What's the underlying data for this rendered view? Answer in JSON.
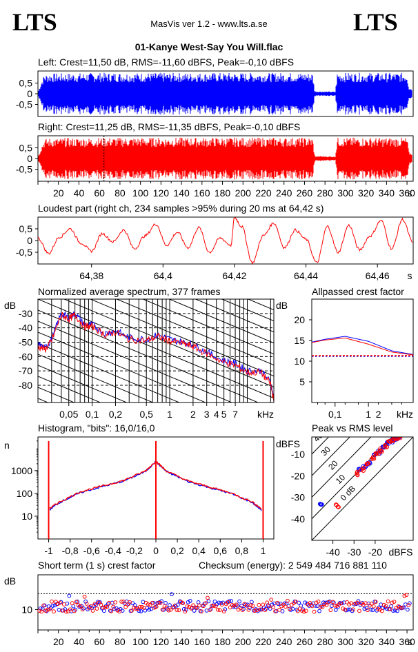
{
  "header": {
    "logo_left": "LTS",
    "logo_right": "LTS",
    "app": "MasVis ver 1.2 - www.lts.a.se",
    "file": "01-Kanye West-Say You Will.flac"
  },
  "colors": {
    "left": "#0000ff",
    "right": "#ff0000",
    "grid": "#000000",
    "dashed": "#000000"
  },
  "chart_data": [
    {
      "id": "left-waveform",
      "type": "area",
      "title": "Left: Crest=11,50 dB, RMS=-11,60 dBFS, Peak=-0,10 dBFS",
      "yticks": [
        "0,5",
        "0",
        "-0,5"
      ],
      "ylim": [
        -1,
        1
      ],
      "x_range": [
        0,
        366
      ],
      "envelope": [
        {
          "t": 0,
          "a": 0.05
        },
        {
          "t": 3,
          "a": 0.55
        },
        {
          "t": 6,
          "a": 0.9
        },
        {
          "t": 10,
          "a": 0.95
        },
        {
          "t": 60,
          "a": 0.98
        },
        {
          "t": 120,
          "a": 0.98
        },
        {
          "t": 200,
          "a": 0.98
        },
        {
          "t": 260,
          "a": 0.98
        },
        {
          "t": 268,
          "a": 0.98
        },
        {
          "t": 270,
          "a": 0.12
        },
        {
          "t": 290,
          "a": 0.1
        },
        {
          "t": 292,
          "a": 0.98
        },
        {
          "t": 360,
          "a": 0.98
        },
        {
          "t": 362,
          "a": 0.3
        },
        {
          "t": 366,
          "a": 0.25
        }
      ]
    },
    {
      "id": "right-waveform",
      "type": "area",
      "title": "Right: Crest=11,25 dB, RMS=-11,35 dBFS, Peak=-0,10 dBFS",
      "yticks": [
        "0,5",
        "0",
        "-0,5"
      ],
      "ylim": [
        -1,
        1
      ],
      "x_range": [
        0,
        366
      ],
      "marker_at": 64.42,
      "xticks": [
        "20",
        "40",
        "60",
        "80",
        "100",
        "120",
        "140",
        "160",
        "180",
        "200",
        "220",
        "240",
        "260",
        "280",
        "300",
        "320",
        "340",
        "360"
      ],
      "xunit": "s",
      "envelope": [
        {
          "t": 0,
          "a": 0.05
        },
        {
          "t": 3,
          "a": 0.55
        },
        {
          "t": 6,
          "a": 0.9
        },
        {
          "t": 10,
          "a": 0.95
        },
        {
          "t": 60,
          "a": 0.98
        },
        {
          "t": 120,
          "a": 0.98
        },
        {
          "t": 200,
          "a": 0.98
        },
        {
          "t": 260,
          "a": 0.98
        },
        {
          "t": 268,
          "a": 0.98
        },
        {
          "t": 270,
          "a": 0.12
        },
        {
          "t": 290,
          "a": 0.1
        },
        {
          "t": 292,
          "a": 0.98
        },
        {
          "t": 360,
          "a": 0.98
        },
        {
          "t": 362,
          "a": 0.3
        },
        {
          "t": 366,
          "a": 0.25
        }
      ]
    },
    {
      "id": "loudest-part",
      "type": "line",
      "title": "Loudest part (right ch, 234 samples >95% during 20 ms at 64,42 s)",
      "yticks": [
        "0,5",
        "0",
        "-0,5"
      ],
      "ylim": [
        -1,
        1
      ],
      "xlim": [
        64.365,
        64.47
      ],
      "xticks": [
        "64,38",
        "64,4",
        "64,42",
        "64,44",
        "64,46"
      ],
      "xtick_values": [
        64.38,
        64.4,
        64.42,
        64.44,
        64.46
      ],
      "xunit": "s",
      "series": [
        {
          "x": [
            64.365,
            64.368,
            64.371,
            64.374,
            64.377,
            64.38,
            64.383,
            64.386,
            64.389,
            64.392,
            64.395,
            64.398,
            64.401,
            64.404,
            64.407,
            64.41,
            64.413,
            64.416,
            64.419,
            64.42,
            64.422,
            64.425,
            64.428,
            64.431,
            64.434,
            64.437,
            64.44,
            64.443,
            64.446,
            64.449,
            64.452,
            64.455,
            64.458,
            64.461,
            64.464,
            64.467,
            64.47
          ],
          "y": [
            0.1,
            -0.55,
            0.15,
            0.5,
            -0.1,
            -0.45,
            0.3,
            -0.05,
            0.45,
            -0.35,
            0.2,
            0.7,
            -0.2,
            0.35,
            -0.3,
            0.55,
            -0.5,
            0.1,
            -0.2,
            0.98,
            0.6,
            -0.95,
            0.2,
            0.75,
            -0.3,
            0.45,
            0.05,
            -0.95,
            0.6,
            -0.5,
            0.65,
            -0.4,
            0.2,
            0.85,
            -0.35,
            0.9,
            -0.1
          ]
        }
      ]
    },
    {
      "id": "normalized-spectrum",
      "type": "line",
      "title": "Normalized average spectrum, 377 frames",
      "ylabel": "dB",
      "yticks": [
        "-30",
        "-40",
        "-50",
        "-60",
        "-70",
        "-80"
      ],
      "ytick_values": [
        -30,
        -40,
        -50,
        -60,
        -70,
        -80
      ],
      "ylim": [
        -92,
        -20
      ],
      "xscale": "log",
      "xlim": [
        0.02,
        22
      ],
      "xticks": [
        "0,05",
        "0,1",
        "0,2",
        "0,5",
        "1",
        "2",
        "3",
        "4",
        "5",
        "7"
      ],
      "xtick_values": [
        0.05,
        0.1,
        0.2,
        0.5,
        1,
        2,
        3,
        4,
        5,
        7
      ],
      "xunit": "kHz",
      "series": [
        {
          "color": "left",
          "x": [
            0.02,
            0.025,
            0.03,
            0.04,
            0.05,
            0.06,
            0.08,
            0.1,
            0.15,
            0.2,
            0.3,
            0.5,
            0.7,
            1,
            1.5,
            2,
            3,
            5,
            7,
            10,
            15,
            20,
            22
          ],
          "y": [
            -52,
            -54,
            -48,
            -30,
            -33,
            -30,
            -38,
            -38,
            -44,
            -42,
            -47,
            -48,
            -45,
            -48,
            -50,
            -52,
            -57,
            -63,
            -65,
            -70,
            -70,
            -78,
            -90
          ]
        },
        {
          "color": "right",
          "x": [
            0.02,
            0.025,
            0.03,
            0.04,
            0.05,
            0.06,
            0.08,
            0.1,
            0.15,
            0.2,
            0.3,
            0.5,
            0.7,
            1,
            1.5,
            2,
            3,
            5,
            7,
            10,
            15,
            20,
            22
          ],
          "y": [
            -53,
            -55,
            -49,
            -31,
            -34,
            -31,
            -39,
            -39,
            -45,
            -43,
            -48,
            -49,
            -46,
            -49,
            -51,
            -53,
            -58,
            -64,
            -66,
            -71,
            -71,
            -79,
            -91
          ]
        }
      ]
    },
    {
      "id": "allpassed-crest",
      "type": "line",
      "title": "Allpassed crest factor",
      "ylabel": "dB",
      "yticks": [
        "20",
        "15",
        "10",
        "5"
      ],
      "ytick_values": [
        20,
        15,
        10,
        5
      ],
      "ylim": [
        0,
        25
      ],
      "xscale": "log",
      "xlim": [
        0.02,
        22
      ],
      "xticks": [
        "0,1",
        "1",
        "2"
      ],
      "xtick_values": [
        0.1,
        1,
        2
      ],
      "xunit": "kHz",
      "reference_line": 11.3,
      "series": [
        {
          "color": "left",
          "x": [
            0.02,
            0.05,
            0.2,
            1,
            5,
            22
          ],
          "y": [
            14.6,
            15.3,
            16.0,
            14.8,
            12.5,
            11.6
          ]
        },
        {
          "color": "right",
          "x": [
            0.02,
            0.05,
            0.2,
            1,
            5,
            22
          ],
          "y": [
            14.5,
            15.1,
            15.6,
            14.1,
            12.2,
            11.5
          ]
        }
      ]
    },
    {
      "id": "histogram",
      "type": "line",
      "title": "Histogram, \"bits\": 16,0/16,0",
      "ylabel": "n",
      "yscale": "log",
      "yticks": [
        "1000",
        "100",
        "10"
      ],
      "ytick_values": [
        1000,
        100,
        10
      ],
      "ylim": [
        1,
        30000
      ],
      "xlim": [
        -1.1,
        1.1
      ],
      "xticks": [
        "-1",
        "-0,8",
        "-0,6",
        "-0,4",
        "-0,2",
        "0",
        "0,2",
        "0,4",
        "0,6",
        "0,8",
        "1"
      ],
      "xtick_values": [
        -1,
        -0.8,
        -0.6,
        -0.4,
        -0.2,
        0,
        0.2,
        0.4,
        0.6,
        0.8,
        1
      ],
      "series": [
        {
          "color": "left",
          "x": [
            -0.99,
            -0.9,
            -0.7,
            -0.5,
            -0.3,
            -0.1,
            0,
            0.1,
            0.3,
            0.5,
            0.7,
            0.9,
            0.99
          ],
          "y": [
            20,
            40,
            110,
            200,
            350,
            900,
            2500,
            900,
            330,
            180,
            100,
            40,
            18
          ]
        },
        {
          "color": "right",
          "x": [
            -0.99,
            -0.9,
            -0.7,
            -0.5,
            -0.3,
            -0.1,
            0,
            0.1,
            0.3,
            0.5,
            0.7,
            0.9,
            0.99
          ],
          "y": [
            22,
            42,
            120,
            210,
            370,
            950,
            2600,
            950,
            350,
            190,
            105,
            42,
            20
          ]
        }
      ],
      "spikes": [
        {
          "x": -1,
          "n": 20000
        },
        {
          "x": 0,
          "n": 20000
        },
        {
          "x": 1,
          "n": 20000
        }
      ]
    },
    {
      "id": "peak-vs-rms",
      "type": "scatter",
      "title": "Peak vs RMS level",
      "ylabel": "dBFS",
      "xunit": "dBFS",
      "yticks": [
        "-10",
        "-20",
        "-30",
        "-40"
      ],
      "ytick_values": [
        -10,
        -20,
        -30,
        -40
      ],
      "xticks": [
        "-40",
        "-30",
        "-20"
      ],
      "xtick_values": [
        -40,
        -30,
        -20
      ],
      "xlim": [
        -50,
        -2
      ],
      "ylim": [
        -50,
        -2
      ],
      "diagonals": [
        {
          "label": "40",
          "offset": 40
        },
        {
          "label": "30",
          "offset": 30
        },
        {
          "label": "20",
          "offset": 20
        },
        {
          "label": "10",
          "offset": 10
        },
        {
          "label": "0 dB",
          "offset": 0
        }
      ],
      "series": [
        {
          "color": "left",
          "points": [
            [
              -46,
              -33
            ],
            [
              -27,
              -17
            ],
            [
              -25,
              -16
            ],
            [
              -23,
              -14
            ],
            [
              -20,
              -10
            ],
            [
              -18,
              -9
            ],
            [
              -16,
              -7
            ],
            [
              -14,
              -5
            ],
            [
              -12,
              -4
            ],
            [
              -11,
              -3
            ],
            [
              -10,
              -2.5
            ],
            [
              -9,
              -2.2
            ]
          ]
        },
        {
          "color": "right",
          "points": [
            [
              -38,
              -34
            ],
            [
              -29,
              -19
            ],
            [
              -26,
              -17
            ],
            [
              -24,
              -15
            ],
            [
              -21,
              -12
            ],
            [
              -19,
              -10
            ],
            [
              -17,
              -8
            ],
            [
              -15,
              -6
            ],
            [
              -13,
              -4.5
            ],
            [
              -11.5,
              -3.5
            ],
            [
              -10,
              -2.6
            ],
            [
              -8.5,
              -2.1
            ]
          ]
        }
      ]
    },
    {
      "id": "short-term-crest",
      "type": "scatter",
      "title": "Short term (1 s) crest factor",
      "checksum": "Checksum (energy):  2 549 484 716 881 110",
      "ylabel": "dB",
      "yticks": [
        "10"
      ],
      "ytick_values": [
        10
      ],
      "ylim": [
        3,
        22
      ],
      "reference_line": 15.5,
      "xlim": [
        0,
        366
      ],
      "xticks": [
        "20",
        "40",
        "60",
        "80",
        "100",
        "120",
        "140",
        "160",
        "180",
        "200",
        "220",
        "240",
        "260",
        "280",
        "300",
        "320",
        "340",
        "360"
      ],
      "xunit": "s",
      "series": [
        {
          "color": "left",
          "base": 11.2,
          "spread": 1.8
        },
        {
          "color": "right",
          "base": 11.0,
          "spread": 1.8
        }
      ]
    }
  ]
}
